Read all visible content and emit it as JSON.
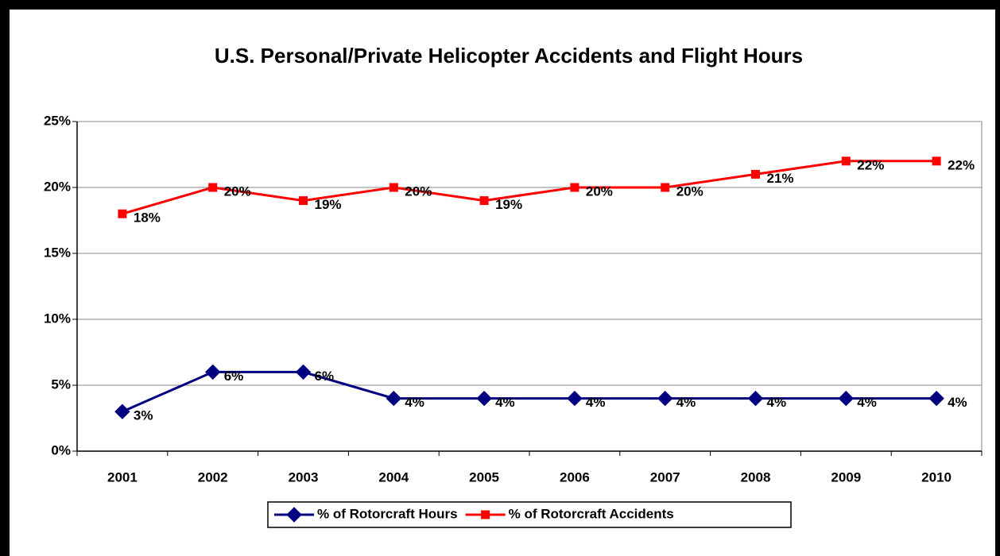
{
  "chart_data": {
    "type": "line",
    "title": "U.S. Personal/Private Helicopter Accidents and Flight Hours",
    "categories": [
      "2001",
      "2002",
      "2003",
      "2004",
      "2005",
      "2006",
      "2007",
      "2008",
      "2009",
      "2010"
    ],
    "series": [
      {
        "name": "% of Rotorcraft Hours",
        "color": "#000080",
        "marker": "diamond",
        "values": [
          3,
          6,
          6,
          4,
          4,
          4,
          4,
          4,
          4,
          4
        ],
        "value_labels": [
          "3%",
          "6%",
          "6%",
          "4%",
          "4%",
          "4%",
          "4%",
          "4%",
          "4%",
          "4%"
        ]
      },
      {
        "name": "% of Rotorcraft Accidents",
        "color": "#ff0000",
        "marker": "square",
        "values": [
          18,
          20,
          19,
          20,
          19,
          20,
          20,
          21,
          22,
          22
        ],
        "value_labels": [
          "18%",
          "20%",
          "19%",
          "20%",
          "19%",
          "20%",
          "20%",
          "21%",
          "22%",
          "22%"
        ]
      }
    ],
    "ylim": [
      0,
      25
    ],
    "yticks": [
      {
        "value": 0,
        "label": "0%"
      },
      {
        "value": 5,
        "label": "5%"
      },
      {
        "value": 10,
        "label": "10%"
      },
      {
        "value": 15,
        "label": "15%"
      },
      {
        "value": 20,
        "label": "20%"
      },
      {
        "value": 25,
        "label": "25%"
      }
    ],
    "grid": true,
    "legend": "bottom"
  }
}
